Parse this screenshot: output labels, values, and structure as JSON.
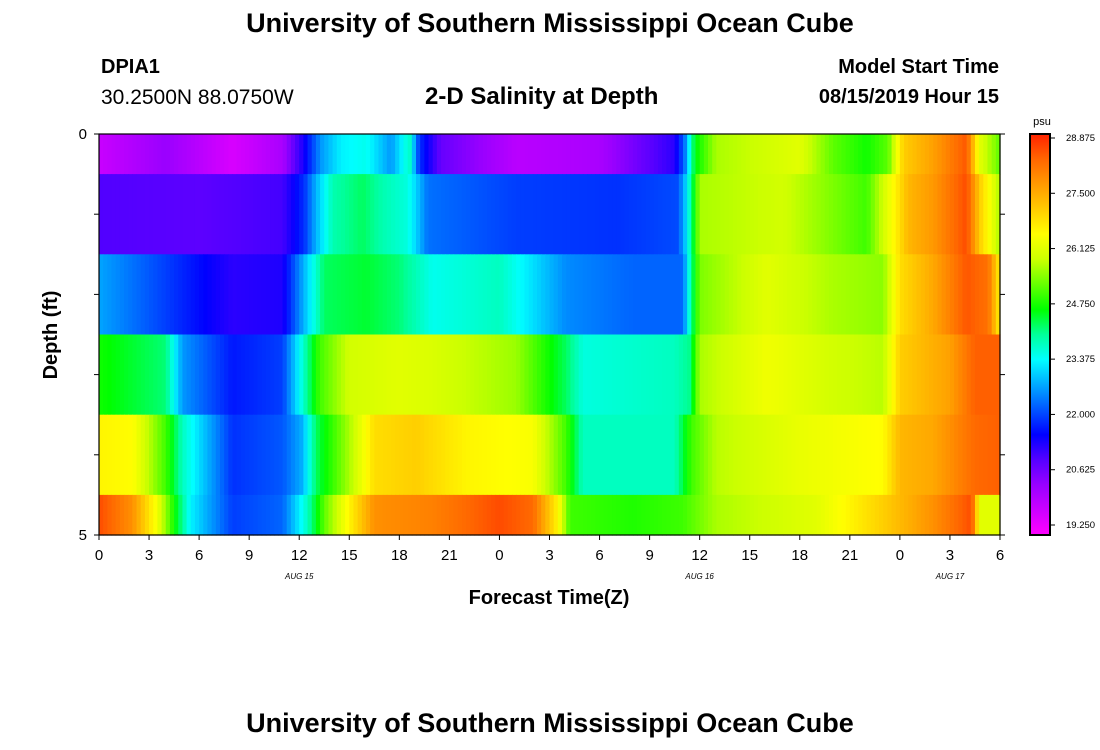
{
  "header": {
    "title": "University of Southern Mississippi Ocean Cube",
    "station_id": "DPIA1",
    "station_location": "30.2500N 88.0750W",
    "subtitle": "2-D Salinity at Depth",
    "model_start_label": "Model Start Time",
    "model_start_value": "08/15/2019 Hour 15"
  },
  "footer": {
    "title": "University of Southern Mississippi Ocean Cube"
  },
  "chart_data": {
    "type": "heatmap",
    "title": "2-D Salinity at Depth",
    "xlabel": "Forecast Time(Z)",
    "ylabel": "Depth (ft)",
    "x_ticks": [
      "0",
      "3",
      "6",
      "9",
      "12",
      "15",
      "18",
      "21",
      "0",
      "3",
      "6",
      "9",
      "12",
      "15",
      "18",
      "21",
      "0",
      "3",
      "6"
    ],
    "x_range_hours": [
      0,
      54
    ],
    "date_labels": [
      {
        "label": "AUG 15",
        "at_hour": 12
      },
      {
        "label": "AUG 16",
        "at_hour": 36
      },
      {
        "label": "AUG 17",
        "at_hour": 51
      }
    ],
    "y_tick_labels": [
      {
        "label": "0",
        "depth": 0
      },
      {
        "label": "5",
        "depth": 5
      }
    ],
    "y_range": [
      0,
      5
    ],
    "colorbar": {
      "unit": "psu",
      "min": 18.5,
      "max": 29.0,
      "tick_labels": [
        "28.875",
        "27.500",
        "26.125",
        "24.750",
        "23.375",
        "22.000",
        "20.625",
        "19.250"
      ],
      "colors": [
        "#ff00ff",
        "#cc00ff",
        "#9900ff",
        "#5500ff",
        "#0000ff",
        "#0055ff",
        "#00aaff",
        "#00ffff",
        "#00ff99",
        "#00ff00",
        "#66ff00",
        "#ccff00",
        "#ffff00",
        "#ffcc00",
        "#ff9900",
        "#ff6600",
        "#ff2200"
      ]
    },
    "depth_bins": [
      0.0,
      0.5,
      1.5,
      2.5,
      3.5,
      4.5,
      5.0
    ],
    "rows": [
      {
        "depth": 0.0,
        "keys": [
          [
            0,
            19.2
          ],
          [
            4,
            19.8
          ],
          [
            8,
            19.0
          ],
          [
            11,
            19.6
          ],
          [
            12.3,
            21.0
          ],
          [
            13.3,
            22.3
          ],
          [
            14.5,
            23.0
          ],
          [
            16,
            23.2
          ],
          [
            17.5,
            22.3
          ],
          [
            18.6,
            23.5
          ],
          [
            19.2,
            21.5
          ],
          [
            20.5,
            20.3
          ],
          [
            25,
            19.4
          ],
          [
            30,
            19.6
          ],
          [
            34.5,
            20.8
          ],
          [
            35.1,
            22.0
          ],
          [
            35.7,
            24.3
          ],
          [
            37,
            25.5
          ],
          [
            42,
            26.0
          ],
          [
            44,
            25.0
          ],
          [
            46,
            24.5
          ],
          [
            47.3,
            25.0
          ],
          [
            48.2,
            27.0
          ],
          [
            50,
            27.6
          ],
          [
            52,
            28.5
          ],
          [
            52.8,
            26.0
          ],
          [
            54,
            25.0
          ]
        ]
      },
      {
        "depth": 1.0,
        "keys": [
          [
            0,
            20.5
          ],
          [
            6,
            20.4
          ],
          [
            11,
            20.6
          ],
          [
            12.3,
            21.5
          ],
          [
            13,
            22.5
          ],
          [
            14,
            23.6
          ],
          [
            15.8,
            24.0
          ],
          [
            17,
            23.6
          ],
          [
            18.5,
            23.3
          ],
          [
            19.7,
            22.0
          ],
          [
            25,
            21.6
          ],
          [
            31,
            21.5
          ],
          [
            34.7,
            21.7
          ],
          [
            35.2,
            22.8
          ],
          [
            36,
            25.5
          ],
          [
            41,
            25.8
          ],
          [
            44,
            25.2
          ],
          [
            46,
            24.8
          ],
          [
            47.2,
            26.0
          ],
          [
            48.5,
            27.3
          ],
          [
            50,
            27.7
          ],
          [
            52,
            28.6
          ],
          [
            52.8,
            27.0
          ],
          [
            54,
            25.5
          ]
        ]
      },
      {
        "depth": 2.0,
        "keys": [
          [
            0,
            22.4
          ],
          [
            4,
            21.6
          ],
          [
            8,
            20.8
          ],
          [
            11,
            20.9
          ],
          [
            12.5,
            22.8
          ],
          [
            13.5,
            24.0
          ],
          [
            16,
            24.2
          ],
          [
            18,
            23.9
          ],
          [
            20,
            23.2
          ],
          [
            24,
            23.5
          ],
          [
            28,
            22.2
          ],
          [
            32,
            21.9
          ],
          [
            35,
            21.9
          ],
          [
            35.5,
            23.8
          ],
          [
            36,
            25.2
          ],
          [
            40,
            26.0
          ],
          [
            44,
            25.5
          ],
          [
            47,
            25.3
          ],
          [
            48,
            26.8
          ],
          [
            50,
            27.5
          ],
          [
            52,
            28.5
          ],
          [
            53.3,
            28.2
          ],
          [
            54,
            26.5
          ]
        ]
      },
      {
        "depth": 3.0,
        "keys": [
          [
            0,
            24.5
          ],
          [
            4,
            23.9
          ],
          [
            5,
            22.3
          ],
          [
            8,
            21.3
          ],
          [
            11,
            21.6
          ],
          [
            12.5,
            23.8
          ],
          [
            13.2,
            24.8
          ],
          [
            15,
            25.8
          ],
          [
            18,
            26.0
          ],
          [
            20,
            25.9
          ],
          [
            25,
            25.4
          ],
          [
            28,
            24.0
          ],
          [
            29,
            23.3
          ],
          [
            34.5,
            23.5
          ],
          [
            35.4,
            23.8
          ],
          [
            36,
            25.5
          ],
          [
            40,
            26.2
          ],
          [
            44,
            25.8
          ],
          [
            47,
            25.6
          ],
          [
            48,
            27.0
          ],
          [
            51,
            27.6
          ],
          [
            52.5,
            28.4
          ],
          [
            54,
            28.4
          ]
        ]
      },
      {
        "depth": 4.0,
        "keys": [
          [
            0,
            26.5
          ],
          [
            2,
            26.4
          ],
          [
            4,
            24.8
          ],
          [
            5,
            23.5
          ],
          [
            8,
            21.5
          ],
          [
            11,
            21.8
          ],
          [
            12.2,
            22.5
          ],
          [
            13,
            24.0
          ],
          [
            15,
            25.5
          ],
          [
            16.5,
            26.8
          ],
          [
            19,
            27.0
          ],
          [
            22,
            26.5
          ],
          [
            26,
            26.3
          ],
          [
            28,
            24.8
          ],
          [
            29,
            23.5
          ],
          [
            34.5,
            23.5
          ],
          [
            35.5,
            24.8
          ],
          [
            37,
            25.6
          ],
          [
            42,
            26.1
          ],
          [
            47,
            26.4
          ],
          [
            48,
            27.3
          ],
          [
            50,
            27.5
          ],
          [
            52.5,
            28.3
          ],
          [
            54,
            28.4
          ]
        ]
      },
      {
        "depth": 5.0,
        "keys": [
          [
            0,
            28.6
          ],
          [
            2,
            27.8
          ],
          [
            3.5,
            26.2
          ],
          [
            4.5,
            24.5
          ],
          [
            5.5,
            23.0
          ],
          [
            8,
            21.6
          ],
          [
            11,
            21.9
          ],
          [
            12.5,
            23.5
          ],
          [
            13.5,
            25.0
          ],
          [
            15,
            26.5
          ],
          [
            16.5,
            27.8
          ],
          [
            20,
            28.0
          ],
          [
            24,
            28.6
          ],
          [
            26,
            28.3
          ],
          [
            27.5,
            26.5
          ],
          [
            28.2,
            24.8
          ],
          [
            32,
            24.6
          ],
          [
            35,
            24.8
          ],
          [
            37,
            25.5
          ],
          [
            43,
            26.0
          ],
          [
            47,
            27.0
          ],
          [
            50,
            27.8
          ],
          [
            52.3,
            28.6
          ],
          [
            52.8,
            26.0
          ],
          [
            54,
            26.0
          ]
        ]
      }
    ]
  }
}
